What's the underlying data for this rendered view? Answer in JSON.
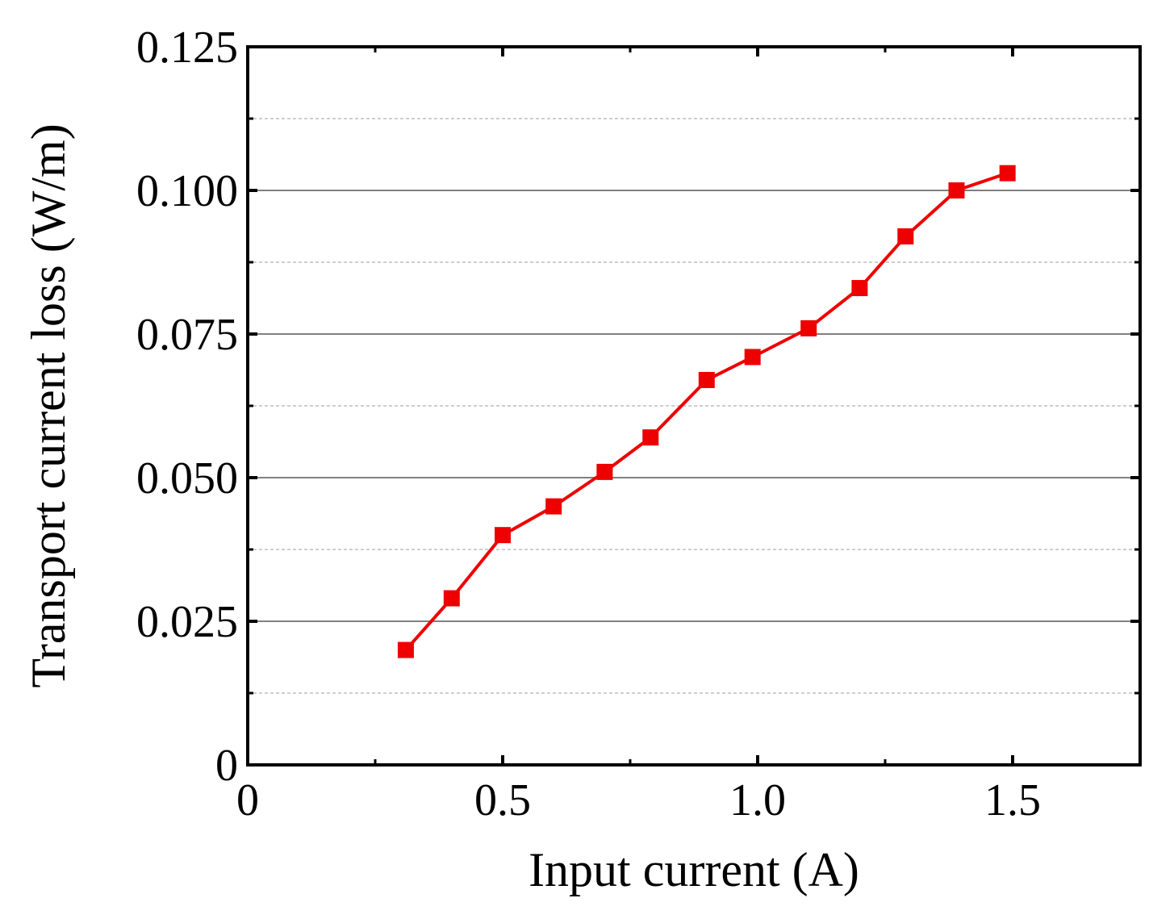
{
  "chart_data": {
    "type": "line",
    "title": "",
    "xlabel": "Input current (A)",
    "ylabel": "Transport current loss (W/m)",
    "xlim": [
      0,
      1.75
    ],
    "ylim": [
      0,
      0.125
    ],
    "x_ticks": [
      0,
      0.5,
      1.0,
      1.5
    ],
    "x_tick_labels": [
      "0",
      "0.5",
      "1.0",
      "1.5"
    ],
    "x_minor_ticks": [
      0.25,
      0.75,
      1.25
    ],
    "y_ticks": [
      0,
      0.025,
      0.05,
      0.075,
      0.1,
      0.125
    ],
    "y_tick_labels": [
      "0",
      "0.025",
      "0.050",
      "0.075",
      "0.100",
      "0.125"
    ],
    "y_minor_ticks": [
      0.0125,
      0.0375,
      0.0625,
      0.0875,
      0.1125
    ],
    "grid": true,
    "series": [
      {
        "color": "#ee0000",
        "marker": "square",
        "x": [
          0.31,
          0.4,
          0.5,
          0.6,
          0.7,
          0.79,
          0.9,
          0.99,
          1.1,
          1.2,
          1.29,
          1.39,
          1.49
        ],
        "y": [
          0.02,
          0.029,
          0.04,
          0.045,
          0.051,
          0.057,
          0.067,
          0.071,
          0.076,
          0.083,
          0.092,
          0.1,
          0.103
        ]
      }
    ]
  }
}
